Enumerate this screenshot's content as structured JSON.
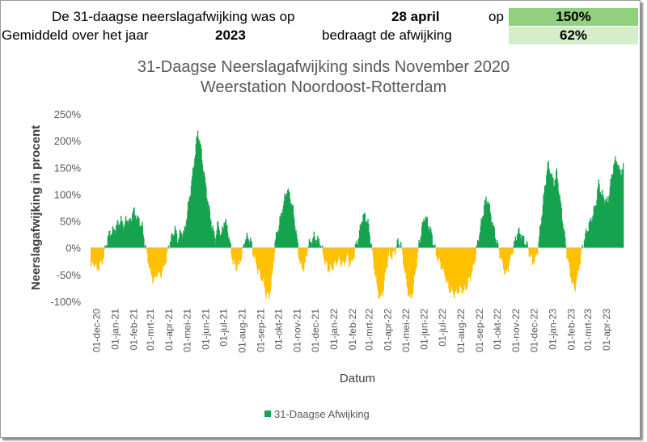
{
  "header": {
    "row1_label": "De 31-daagse neerslagafwijking was op",
    "row1_date": "28 april",
    "row1_op": "op",
    "row1_value": "150%",
    "row2_label": "Gemiddeld over het jaar",
    "row2_year": "2023",
    "row2_label2": "bedraagt de afwijking",
    "row2_value": "62%",
    "row1_color": "#92d07f",
    "row2_color": "#d4eecb"
  },
  "chart_data": {
    "type": "bar",
    "title": "31-Daagse Neerslagafwijking sinds November 2020",
    "subtitle": "Weerstation Noordoost-Rotterdam",
    "xlabel": "Datum",
    "ylabel": "Neerslagafwijking in procent",
    "ylim": [
      -100,
      250
    ],
    "yticks": [
      "-100%",
      "-50%",
      "0%",
      "50%",
      "100%",
      "150%",
      "200%",
      "250%"
    ],
    "x_range": [
      "2020-11-21",
      "2023-04-28"
    ],
    "xticks": [
      "01-dec-20",
      "01-jan-21",
      "01-feb-21",
      "01-mrt-21",
      "01-apr-21",
      "01-mei-21",
      "01-jun-21",
      "01-jul-21",
      "01-aug-21",
      "01-sep-21",
      "01-okt-21",
      "01-nov-21",
      "01-dec-21",
      "01-jan-22",
      "01-feb-22",
      "01-mrt-22",
      "01-apr-22",
      "01-mei-22",
      "01-jun-22",
      "01-jul-22",
      "01-aug-22",
      "01-sep-22",
      "01-okt-22",
      "01-nov-22",
      "01-dec-22",
      "01-jan-23",
      "01-feb-23",
      "01-mrt-23",
      "01-apr-23"
    ],
    "positive_color": "#16a34f",
    "negative_color": "#ffc000",
    "grid": false,
    "legend": {
      "position": "bottom",
      "entries": [
        "31-Daagse Afwijking"
      ]
    },
    "series": [
      {
        "name": "31-Daagse Afwijking",
        "points": [
          [
            "2020-11-21",
            -35
          ],
          [
            "2020-11-26",
            -25
          ],
          [
            "2020-12-01",
            -40
          ],
          [
            "2020-12-06",
            -30
          ],
          [
            "2020-12-11",
            -20
          ],
          [
            "2020-12-16",
            5
          ],
          [
            "2020-12-21",
            25
          ],
          [
            "2020-12-26",
            30
          ],
          [
            "2020-12-31",
            35
          ],
          [
            "2021-01-05",
            45
          ],
          [
            "2021-01-10",
            50
          ],
          [
            "2021-01-15",
            40
          ],
          [
            "2021-01-20",
            55
          ],
          [
            "2021-01-25",
            45
          ],
          [
            "2021-01-30",
            70
          ],
          [
            "2021-02-04",
            60
          ],
          [
            "2021-02-09",
            50
          ],
          [
            "2021-02-14",
            40
          ],
          [
            "2021-02-19",
            5
          ],
          [
            "2021-02-24",
            -20
          ],
          [
            "2021-03-01",
            -50
          ],
          [
            "2021-03-06",
            -60
          ],
          [
            "2021-03-11",
            -45
          ],
          [
            "2021-03-16",
            -50
          ],
          [
            "2021-03-21",
            -40
          ],
          [
            "2021-03-26",
            -20
          ],
          [
            "2021-03-31",
            5
          ],
          [
            "2021-04-05",
            20
          ],
          [
            "2021-04-10",
            35
          ],
          [
            "2021-04-15",
            15
          ],
          [
            "2021-04-20",
            30
          ],
          [
            "2021-04-25",
            25
          ],
          [
            "2021-04-30",
            60
          ],
          [
            "2021-05-05",
            100
          ],
          [
            "2021-05-10",
            140
          ],
          [
            "2021-05-15",
            190
          ],
          [
            "2021-05-18",
            215
          ],
          [
            "2021-05-22",
            195
          ],
          [
            "2021-05-27",
            150
          ],
          [
            "2021-06-01",
            110
          ],
          [
            "2021-06-06",
            70
          ],
          [
            "2021-06-11",
            40
          ],
          [
            "2021-06-16",
            15
          ],
          [
            "2021-06-21",
            45
          ],
          [
            "2021-06-26",
            20
          ],
          [
            "2021-07-01",
            50
          ],
          [
            "2021-07-06",
            40
          ],
          [
            "2021-07-11",
            5
          ],
          [
            "2021-07-16",
            -25
          ],
          [
            "2021-07-21",
            -35
          ],
          [
            "2021-07-26",
            -30
          ],
          [
            "2021-07-31",
            -10
          ],
          [
            "2021-08-05",
            15
          ],
          [
            "2021-08-10",
            20
          ],
          [
            "2021-08-15",
            10
          ],
          [
            "2021-08-20",
            -15
          ],
          [
            "2021-08-25",
            -35
          ],
          [
            "2021-08-30",
            -50
          ],
          [
            "2021-09-04",
            -60
          ],
          [
            "2021-09-09",
            -85
          ],
          [
            "2021-09-14",
            -90
          ],
          [
            "2021-09-19",
            -55
          ],
          [
            "2021-09-24",
            10
          ],
          [
            "2021-09-29",
            35
          ],
          [
            "2021-10-04",
            60
          ],
          [
            "2021-10-09",
            85
          ],
          [
            "2021-10-14",
            110
          ],
          [
            "2021-10-19",
            95
          ],
          [
            "2021-10-24",
            70
          ],
          [
            "2021-10-29",
            30
          ],
          [
            "2021-11-03",
            -15
          ],
          [
            "2021-11-08",
            -40
          ],
          [
            "2021-11-13",
            -30
          ],
          [
            "2021-11-18",
            5
          ],
          [
            "2021-11-23",
            10
          ],
          [
            "2021-11-28",
            20
          ],
          [
            "2021-12-03",
            15
          ],
          [
            "2021-12-08",
            10
          ],
          [
            "2021-12-13",
            -10
          ],
          [
            "2021-12-18",
            -30
          ],
          [
            "2021-12-23",
            -40
          ],
          [
            "2021-12-28",
            -35
          ],
          [
            "2022-01-02",
            -30
          ],
          [
            "2022-01-07",
            -20
          ],
          [
            "2022-01-12",
            -25
          ],
          [
            "2022-01-17",
            -30
          ],
          [
            "2022-01-22",
            -10
          ],
          [
            "2022-01-27",
            -30
          ],
          [
            "2022-02-01",
            -20
          ],
          [
            "2022-02-06",
            5
          ],
          [
            "2022-02-11",
            20
          ],
          [
            "2022-02-16",
            55
          ],
          [
            "2022-02-21",
            60
          ],
          [
            "2022-02-26",
            45
          ],
          [
            "2022-03-03",
            10
          ],
          [
            "2022-03-08",
            -30
          ],
          [
            "2022-03-13",
            -70
          ],
          [
            "2022-03-18",
            -95
          ],
          [
            "2022-03-23",
            -80
          ],
          [
            "2022-03-28",
            -40
          ],
          [
            "2022-04-02",
            -10
          ],
          [
            "2022-04-07",
            -15
          ],
          [
            "2022-04-12",
            -5
          ],
          [
            "2022-04-17",
            10
          ],
          [
            "2022-04-22",
            5
          ],
          [
            "2022-04-27",
            -30
          ],
          [
            "2022-05-02",
            -70
          ],
          [
            "2022-05-07",
            -95
          ],
          [
            "2022-05-12",
            -80
          ],
          [
            "2022-05-17",
            -35
          ],
          [
            "2022-05-22",
            5
          ],
          [
            "2022-05-27",
            35
          ],
          [
            "2022-06-01",
            60
          ],
          [
            "2022-06-06",
            45
          ],
          [
            "2022-06-11",
            30
          ],
          [
            "2022-06-16",
            5
          ],
          [
            "2022-06-21",
            -15
          ],
          [
            "2022-06-26",
            -25
          ],
          [
            "2022-07-01",
            -40
          ],
          [
            "2022-07-06",
            -55
          ],
          [
            "2022-07-11",
            -75
          ],
          [
            "2022-07-16",
            -80
          ],
          [
            "2022-07-21",
            -85
          ],
          [
            "2022-07-26",
            -80
          ],
          [
            "2022-07-31",
            -75
          ],
          [
            "2022-08-05",
            -80
          ],
          [
            "2022-08-10",
            -70
          ],
          [
            "2022-08-15",
            -55
          ],
          [
            "2022-08-20",
            -40
          ],
          [
            "2022-08-25",
            -10
          ],
          [
            "2022-08-30",
            20
          ],
          [
            "2022-09-04",
            50
          ],
          [
            "2022-09-09",
            85
          ],
          [
            "2022-09-14",
            90
          ],
          [
            "2022-09-19",
            60
          ],
          [
            "2022-09-24",
            35
          ],
          [
            "2022-09-29",
            10
          ],
          [
            "2022-10-04",
            -10
          ],
          [
            "2022-10-09",
            -30
          ],
          [
            "2022-10-14",
            -50
          ],
          [
            "2022-10-19",
            -30
          ],
          [
            "2022-10-24",
            -10
          ],
          [
            "2022-10-29",
            10
          ],
          [
            "2022-11-03",
            30
          ],
          [
            "2022-11-08",
            25
          ],
          [
            "2022-11-13",
            15
          ],
          [
            "2022-11-18",
            5
          ],
          [
            "2022-11-23",
            -10
          ],
          [
            "2022-11-28",
            -25
          ],
          [
            "2022-12-03",
            -20
          ],
          [
            "2022-12-08",
            10
          ],
          [
            "2022-12-13",
            60
          ],
          [
            "2022-12-18",
            110
          ],
          [
            "2022-12-23",
            155
          ],
          [
            "2022-12-28",
            140
          ],
          [
            "2023-01-02",
            120
          ],
          [
            "2023-01-07",
            140
          ],
          [
            "2023-01-12",
            95
          ],
          [
            "2023-01-17",
            50
          ],
          [
            "2023-01-22",
            5
          ],
          [
            "2023-01-27",
            -30
          ],
          [
            "2023-02-01",
            -60
          ],
          [
            "2023-02-06",
            -75
          ],
          [
            "2023-02-11",
            -50
          ],
          [
            "2023-02-16",
            -15
          ],
          [
            "2023-02-21",
            10
          ],
          [
            "2023-02-26",
            30
          ],
          [
            "2023-03-03",
            45
          ],
          [
            "2023-03-08",
            60
          ],
          [
            "2023-03-13",
            80
          ],
          [
            "2023-03-18",
            120
          ],
          [
            "2023-03-23",
            100
          ],
          [
            "2023-03-28",
            90
          ],
          [
            "2023-04-02",
            85
          ],
          [
            "2023-04-07",
            120
          ],
          [
            "2023-04-12",
            155
          ],
          [
            "2023-04-17",
            165
          ],
          [
            "2023-04-22",
            140
          ],
          [
            "2023-04-28",
            150
          ]
        ]
      }
    ]
  }
}
